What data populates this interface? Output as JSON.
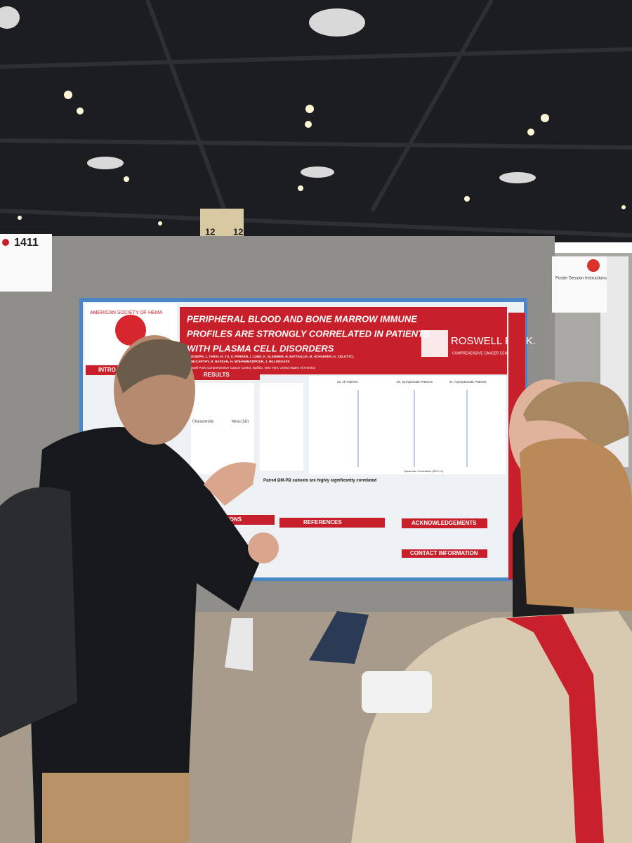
{
  "booth_sign": {
    "number": "1411"
  },
  "pillar": {
    "label": "12"
  },
  "instructions_sign": {
    "title": "Poster Session Instructions"
  },
  "poster": {
    "society_logo": "AMERICAN SOCIETY OF HEMA",
    "title": [
      "PERIPHERAL BLOOD AND BONE MARROW IMMUNE",
      "PROFILES ARE STRONGLY CORRELATED IN PATIENTS",
      "WITH PLASMA CELL DISORDERS"
    ],
    "authors": [
      "J. JOSEPH, J. TARIO, H. YU, S. PARKER, I. LUND, K. SLEMMER, H. BATTAGLIA, M. SCHAEFER, K. CELOTTO,",
      "M. McCARTHY, H. HASSAN, H. MOHAMMADPOUR, J. HILLENGASS"
    ],
    "affiliation": "Roswell Park Comprehensive Cancer Center, Buffalo, New York, United States of America",
    "institution": {
      "name": "ROSWELL PARK.",
      "subtitle": "COMPREHENSIVE CANCER CENTER"
    },
    "sections": {
      "intro": "INTRO",
      "results": "RESULTS",
      "conclusions": "CONCLUSIONS",
      "references": "REFERENCES",
      "acknowledgements": "ACKNOWLEDGEMENTS",
      "contact": "CONTACT INFORMATION"
    },
    "table_header": {
      "characteristic": "Characteristic",
      "stat": "Mean (SD)"
    },
    "panels": [
      "2a. All Patients",
      "2b. Symptomatic Patients",
      "2c. Asymptomatic Patients"
    ],
    "axis_label": "Spearman Correlation (95% CI)",
    "finding": "Paired BM-PB subsets are highly significantly correlated"
  }
}
